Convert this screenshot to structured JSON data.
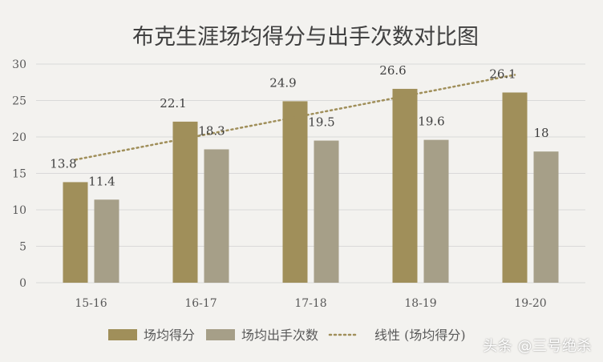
{
  "chart_data": {
    "type": "bar",
    "title": "布克生涯场均得分与出手次数对比图",
    "categories": [
      "15-16",
      "16-17",
      "17-18",
      "18-19",
      "19-20"
    ],
    "series": [
      {
        "name": "场均得分",
        "values": [
          13.8,
          22.1,
          24.9,
          26.6,
          26.1
        ],
        "color": "#a08f5a"
      },
      {
        "name": "场均出手次数",
        "values": [
          11.4,
          18.3,
          19.5,
          19.6,
          18
        ],
        "color": "#a69f88"
      }
    ],
    "trendline": {
      "name": "线性 (场均得分)",
      "of_series": "场均得分",
      "type": "linear",
      "color": "#a08f5a"
    },
    "y_ticks": [
      "0",
      "5",
      "10",
      "15",
      "20",
      "25",
      "30"
    ],
    "ylim": [
      0,
      30
    ],
    "grid": true,
    "legend": "bottom",
    "data_labels": true
  },
  "watermark": "头条 @三号绝杀"
}
